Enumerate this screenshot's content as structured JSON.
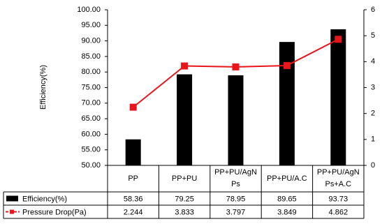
{
  "chart_data": {
    "type": "bar",
    "ylabel": "Efficiency(%)",
    "categories": [
      "PP",
      "PP+PU",
      "PP+PU/AgNPs",
      "PP+PU/A.C",
      "PP+PU/AgNPs+A.C"
    ],
    "series": [
      {
        "name": "Efficiency(%)",
        "type": "bar",
        "color": "#000000",
        "values": [
          58.36,
          79.25,
          78.95,
          89.65,
          93.73
        ]
      },
      {
        "name": "Pressure Drop(Pa)",
        "type": "line",
        "axis": "y2",
        "color": "#e8161b",
        "values": [
          2.244,
          3.833,
          3.797,
          3.849,
          4.862
        ]
      }
    ],
    "ylim": [
      50,
      100
    ],
    "yticks": [
      {
        "value": 50,
        "label": "50.00"
      },
      {
        "value": 55,
        "label": "55.00"
      },
      {
        "value": 60,
        "label": "60.00"
      },
      {
        "value": 65,
        "label": "65.00"
      },
      {
        "value": 70,
        "label": "70.00"
      },
      {
        "value": 75,
        "label": "75.00"
      },
      {
        "value": 80,
        "label": "80.00"
      },
      {
        "value": 85,
        "label": "85.00"
      },
      {
        "value": 90,
        "label": "90.00"
      },
      {
        "value": 95,
        "label": "95.00"
      },
      {
        "value": 100,
        "label": "100.00"
      }
    ],
    "y2lim": [
      0,
      6
    ],
    "y2ticks": [
      0,
      1,
      2,
      3,
      4,
      5,
      6
    ],
    "grid": false
  }
}
